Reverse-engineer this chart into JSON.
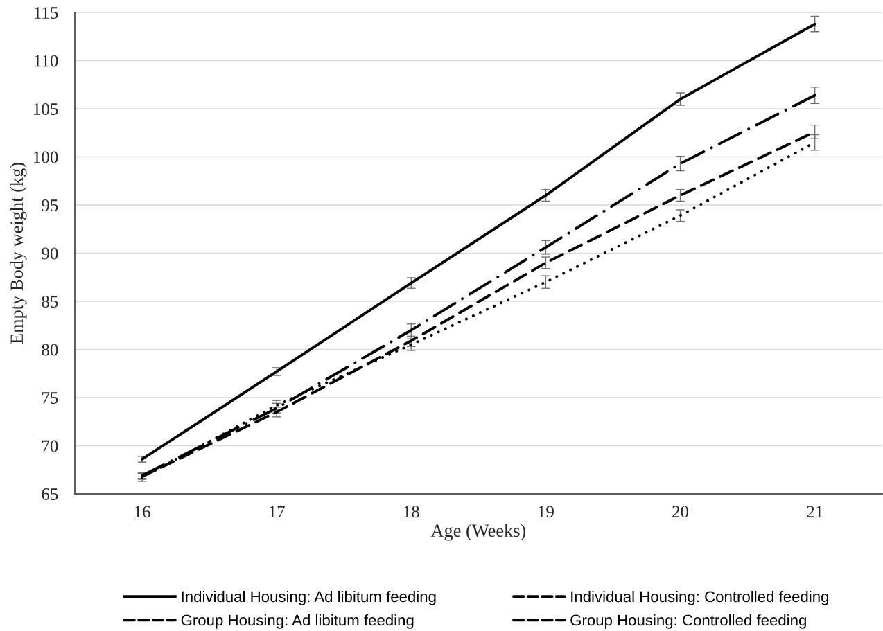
{
  "chart_data": {
    "type": "line",
    "xlabel": "Age (Weeks)",
    "ylabel": "Empty Body weight (kg)",
    "categories": [
      "16",
      "17",
      "18",
      "19",
      "20",
      "21"
    ],
    "ylim": [
      65,
      115
    ],
    "yticks": [
      65,
      70,
      75,
      80,
      85,
      90,
      95,
      100,
      105,
      110,
      115
    ],
    "grid": "y",
    "legend": "bottom",
    "series": [
      {
        "name": "Individual Housing: Ad libitum feeding",
        "color": "#000000",
        "line_style": "solid",
        "values": [
          68.6,
          77.7,
          86.9,
          96.0,
          106.0,
          113.8
        ],
        "errors": [
          0.3,
          0.4,
          0.55,
          0.6,
          0.65,
          0.8
        ]
      },
      {
        "name": "Individual Housing: Controlled feeding",
        "color": "#000000",
        "line_style": "dashed",
        "values": [
          66.8,
          73.5,
          80.9,
          89.0,
          96.0,
          102.6
        ],
        "errors": [
          0.3,
          0.5,
          0.6,
          0.6,
          0.6,
          0.7
        ]
      },
      {
        "name": "Group Housing: Ad libitum feeding",
        "color": "#000000",
        "line_style": "dashdot",
        "values": [
          66.9,
          73.9,
          82.0,
          90.6,
          99.3,
          106.4
        ],
        "errors": [
          0.3,
          0.5,
          0.65,
          0.7,
          0.75,
          0.85
        ]
      },
      {
        "name": "Group Housing: Controlled feeding",
        "color": "#000000",
        "line_style": "dotted",
        "values": [
          66.7,
          74.2,
          80.5,
          87.0,
          93.9,
          101.5
        ],
        "errors": [
          0.4,
          0.5,
          0.6,
          0.65,
          0.6,
          0.8
        ]
      }
    ]
  }
}
